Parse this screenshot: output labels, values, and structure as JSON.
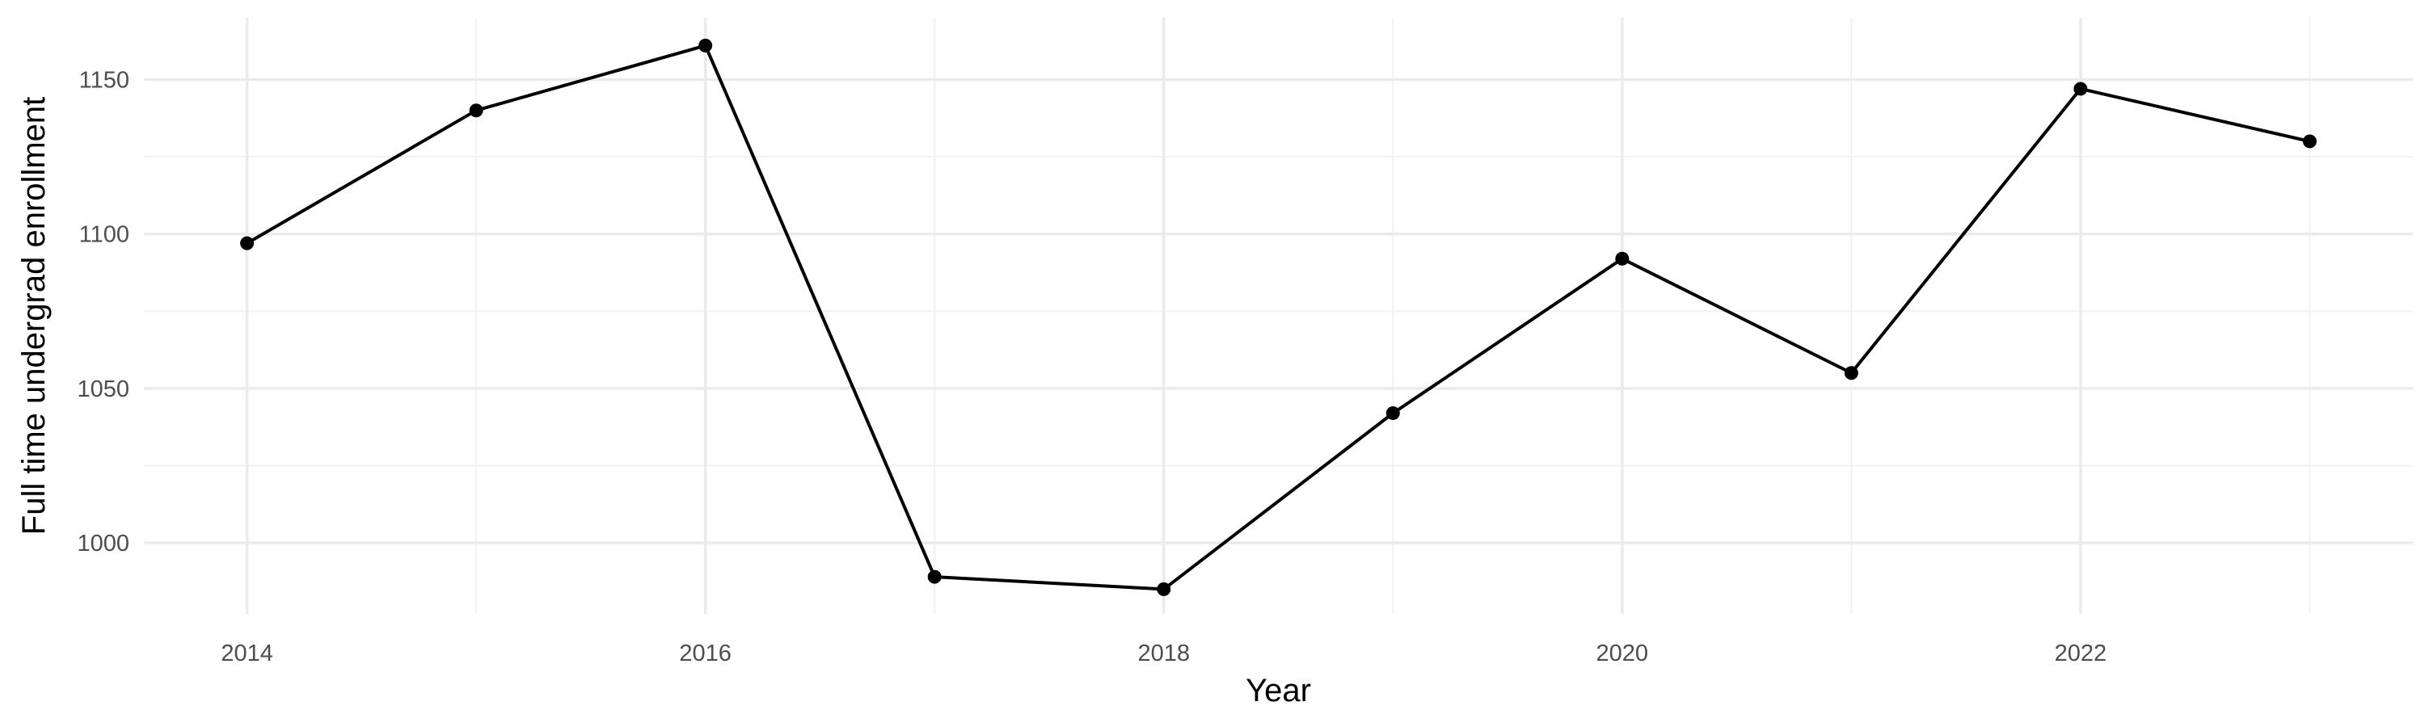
{
  "chart_data": {
    "type": "line",
    "xlabel": "Year",
    "ylabel": "Full time undergrad enrollment",
    "x": [
      2014,
      2015,
      2016,
      2017,
      2018,
      2019,
      2020,
      2021,
      2022,
      2023
    ],
    "series": [
      {
        "values": [
          1097,
          1140,
          1161,
          989,
          985,
          1042,
          1092,
          1055,
          1147,
          1130
        ]
      }
    ],
    "xlim": [
      2013.55,
      2023.45
    ],
    "ylim": [
      977,
      1170
    ],
    "x_major_ticks": [
      2014,
      2016,
      2018,
      2020,
      2022
    ],
    "x_tick_labels": [
      "2014",
      "2016",
      "2018",
      "2020",
      "2022"
    ],
    "x_minor_ticks": [
      2015,
      2017,
      2019,
      2021,
      2023
    ],
    "y_major_ticks": [
      1000,
      1050,
      1100,
      1150
    ],
    "y_tick_labels": [
      "1000",
      "1050",
      "1100",
      "1150"
    ],
    "y_minor_ticks": [
      1025,
      1075,
      1125
    ],
    "grid": true,
    "legend": "none",
    "line_color": "#000000",
    "point_color": "#000000",
    "grid_color": "#ebebeb"
  }
}
